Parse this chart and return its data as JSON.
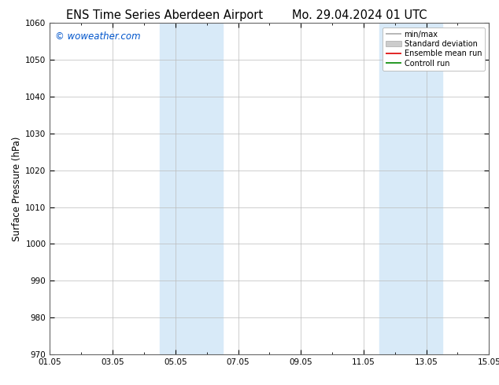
{
  "title_left": "ENS Time Series Aberdeen Airport",
  "title_right": "Mo. 29.04.2024 01 UTC",
  "ylabel": "Surface Pressure (hPa)",
  "ylim": [
    970,
    1060
  ],
  "yticks": [
    970,
    980,
    990,
    1000,
    1010,
    1020,
    1030,
    1040,
    1050,
    1060
  ],
  "xlim_num": [
    0,
    14
  ],
  "xtick_labels": [
    "01.05",
    "03.05",
    "05.05",
    "07.05",
    "09.05",
    "11.05",
    "13.05",
    "15.05"
  ],
  "xtick_positions": [
    0,
    2,
    4,
    6,
    8,
    10,
    12,
    14
  ],
  "shaded_bands": [
    {
      "xmin": 3.5,
      "xmax": 5.5,
      "color": "#d8eaf8"
    },
    {
      "xmin": 10.5,
      "xmax": 12.5,
      "color": "#d8eaf8"
    }
  ],
  "watermark": "© woweather.com",
  "watermark_color": "#0055cc",
  "legend_items": [
    {
      "label": "min/max",
      "color": "#aaaaaa",
      "lw": 1.2,
      "style": "line"
    },
    {
      "label": "Standard deviation",
      "color": "#cccccc",
      "lw": 5,
      "style": "band"
    },
    {
      "label": "Ensemble mean run",
      "color": "#dd0000",
      "lw": 1.2,
      "style": "line"
    },
    {
      "label": "Controll run",
      "color": "#008800",
      "lw": 1.2,
      "style": "line"
    }
  ],
  "background_color": "#ffffff",
  "plot_bg_color": "#ffffff",
  "grid_color": "#bbbbbb",
  "title_fontsize": 10.5,
  "tick_fontsize": 7.5,
  "ylabel_fontsize": 8.5
}
